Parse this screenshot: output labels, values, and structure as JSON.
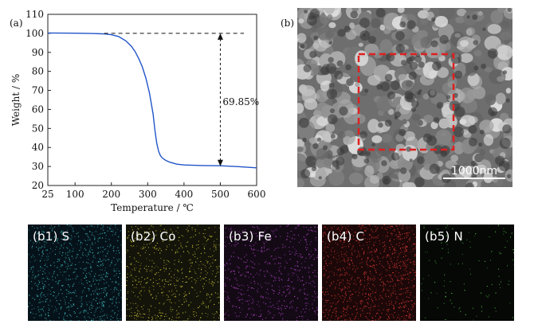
{
  "panel_a": {
    "label": "(a)",
    "chart_data": {
      "type": "line",
      "xlabel": "Temperature / ℃",
      "ylabel": "Weight / %",
      "xlim": [
        25,
        600
      ],
      "ylim": [
        20,
        110
      ],
      "x_ticks": [
        25,
        100,
        200,
        300,
        400,
        500,
        600
      ],
      "y_ticks": [
        20,
        30,
        40,
        50,
        60,
        70,
        80,
        90,
        100,
        110
      ],
      "series": [
        {
          "color": "#2255c8",
          "x": [
            25,
            100,
            150,
            180,
            200,
            220,
            240,
            255,
            265,
            275,
            285,
            295,
            305,
            315,
            320,
            325,
            330,
            335,
            340,
            350,
            360,
            380,
            400,
            450,
            500,
            550,
            600
          ],
          "y": [
            100.2,
            100.1,
            99.9,
            99.7,
            99.3,
            98.3,
            96.0,
            93.2,
            90.5,
            86.9,
            82.4,
            76.5,
            68.5,
            57.5,
            49.0,
            42.2,
            38.0,
            35.7,
            34.5,
            33.2,
            32.3,
            31.2,
            30.8,
            30.5,
            30.4,
            29.9,
            29.3
          ]
        }
      ],
      "annotation": {
        "text": "69.85%",
        "x": 500,
        "y_top": 100,
        "y_bottom": 30.15
      }
    }
  },
  "panel_b": {
    "label": "(b)",
    "scale_bar": "1000nm",
    "highlight_color": "#e02020"
  },
  "maps": [
    {
      "caption": "(b1) S",
      "color": "#3fc4c4",
      "density": 900
    },
    {
      "caption": "(b2) Co",
      "color": "#d8d23a",
      "density": 650
    },
    {
      "caption": "(b3) Fe",
      "color": "#c04ad6",
      "density": 600
    },
    {
      "caption": "(b4) C",
      "color": "#e33b3b",
      "density": 1100
    },
    {
      "caption": "(b5) N",
      "color": "#5ccf4a",
      "density": 120
    }
  ]
}
